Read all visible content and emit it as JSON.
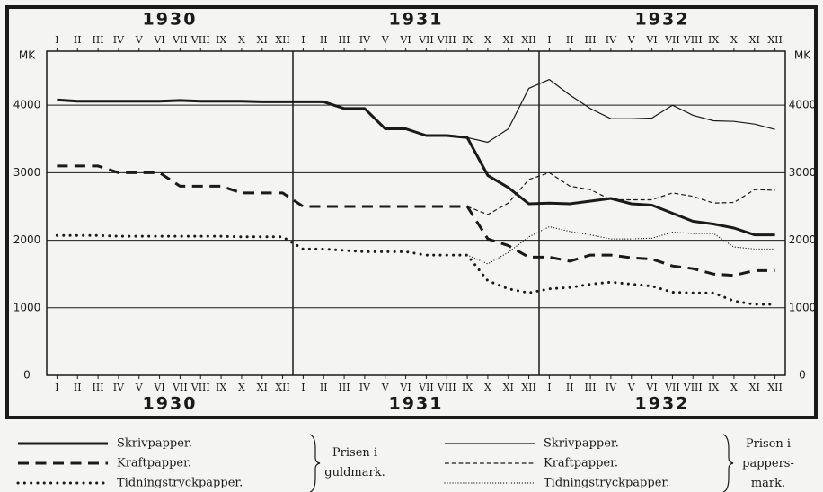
{
  "chart_data": {
    "type": "line",
    "years": [
      "1930",
      "1931",
      "1932"
    ],
    "categories": [
      "I",
      "II",
      "III",
      "IV",
      "V",
      "VI",
      "VII",
      "VIII",
      "IX",
      "X",
      "XI",
      "XII",
      "I",
      "II",
      "III",
      "IV",
      "V",
      "VI",
      "VII",
      "VIII",
      "IX",
      "X",
      "XI",
      "XII",
      "I",
      "II",
      "III",
      "IV",
      "V",
      "VI",
      "VII",
      "VIII",
      "IX",
      "X",
      "XI",
      "XII"
    ],
    "y_label": "MK",
    "ylim": [
      0,
      4800
    ],
    "yticks": [
      0,
      1000,
      2000,
      3000,
      4000
    ],
    "grid": true,
    "series": [
      {
        "name": "Skrivpapper.",
        "color": "#1a1a1a",
        "line_width": 3,
        "dash": "solid",
        "values": [
          4080,
          4060,
          4060,
          4060,
          4060,
          4060,
          4070,
          4060,
          4060,
          4060,
          4050,
          4050,
          4050,
          4050,
          3950,
          3950,
          3650,
          3650,
          3550,
          3550,
          3520,
          2960,
          2780,
          2540,
          2550,
          2540,
          2580,
          2620,
          2540,
          2520,
          2400,
          2280,
          2240,
          2180,
          2080,
          2080
        ]
      },
      {
        "name": "Kraftpapper.",
        "color": "#1a1a1a",
        "line_width": 3,
        "dash": "dashed",
        "values": [
          3100,
          3100,
          3100,
          3000,
          3000,
          3000,
          2800,
          2800,
          2800,
          2700,
          2700,
          2700,
          2500,
          2500,
          2500,
          2500,
          2500,
          2500,
          2500,
          2500,
          2500,
          2020,
          1920,
          1750,
          1750,
          1690,
          1780,
          1780,
          1740,
          1720,
          1620,
          1580,
          1500,
          1480,
          1550,
          1550
        ]
      },
      {
        "name": "Tidningstryckpapper.",
        "color": "#1a1a1a",
        "line_width": 3,
        "dash": "dotted",
        "values": [
          2070,
          2070,
          2070,
          2060,
          2060,
          2060,
          2060,
          2060,
          2060,
          2050,
          2050,
          2050,
          1870,
          1870,
          1850,
          1830,
          1830,
          1830,
          1780,
          1780,
          1780,
          1400,
          1280,
          1220,
          1280,
          1300,
          1350,
          1380,
          1350,
          1320,
          1230,
          1220,
          1220,
          1100,
          1050,
          1050
        ]
      },
      {
        "name": "Skrivpapper.",
        "color": "#1a1a1a",
        "line_width": 1.2,
        "dash": "solid",
        "values": [
          null,
          null,
          null,
          null,
          null,
          null,
          null,
          null,
          null,
          null,
          null,
          null,
          null,
          null,
          null,
          null,
          null,
          null,
          null,
          null,
          3520,
          3450,
          3650,
          4250,
          4380,
          4150,
          3950,
          3800,
          3800,
          3810,
          4000,
          3850,
          3770,
          3760,
          3720,
          3640
        ]
      },
      {
        "name": "Kraftpapper.",
        "color": "#1a1a1a",
        "line_width": 1.2,
        "dash": "dashed",
        "values": [
          null,
          null,
          null,
          null,
          null,
          null,
          null,
          null,
          null,
          null,
          null,
          null,
          null,
          null,
          null,
          null,
          null,
          null,
          null,
          null,
          2500,
          2380,
          2550,
          2900,
          3000,
          2800,
          2750,
          2600,
          2600,
          2600,
          2700,
          2650,
          2550,
          2560,
          2750,
          2740
        ]
      },
      {
        "name": "Tidningstryckpapper.",
        "color": "#1a1a1a",
        "line_width": 1.2,
        "dash": "dotted",
        "values": [
          null,
          null,
          null,
          null,
          null,
          null,
          null,
          null,
          null,
          null,
          null,
          null,
          null,
          null,
          null,
          null,
          null,
          null,
          null,
          null,
          1780,
          1650,
          1820,
          2050,
          2200,
          2130,
          2080,
          2020,
          2020,
          2030,
          2120,
          2100,
          2100,
          1900,
          1870,
          1870
        ]
      }
    ],
    "legend_groups": [
      {
        "label": "Prisen i guldmark.",
        "series": [
          0,
          1,
          2
        ]
      },
      {
        "label": "Prisen i pappers-mark.",
        "series": [
          3,
          4,
          5
        ]
      }
    ]
  }
}
